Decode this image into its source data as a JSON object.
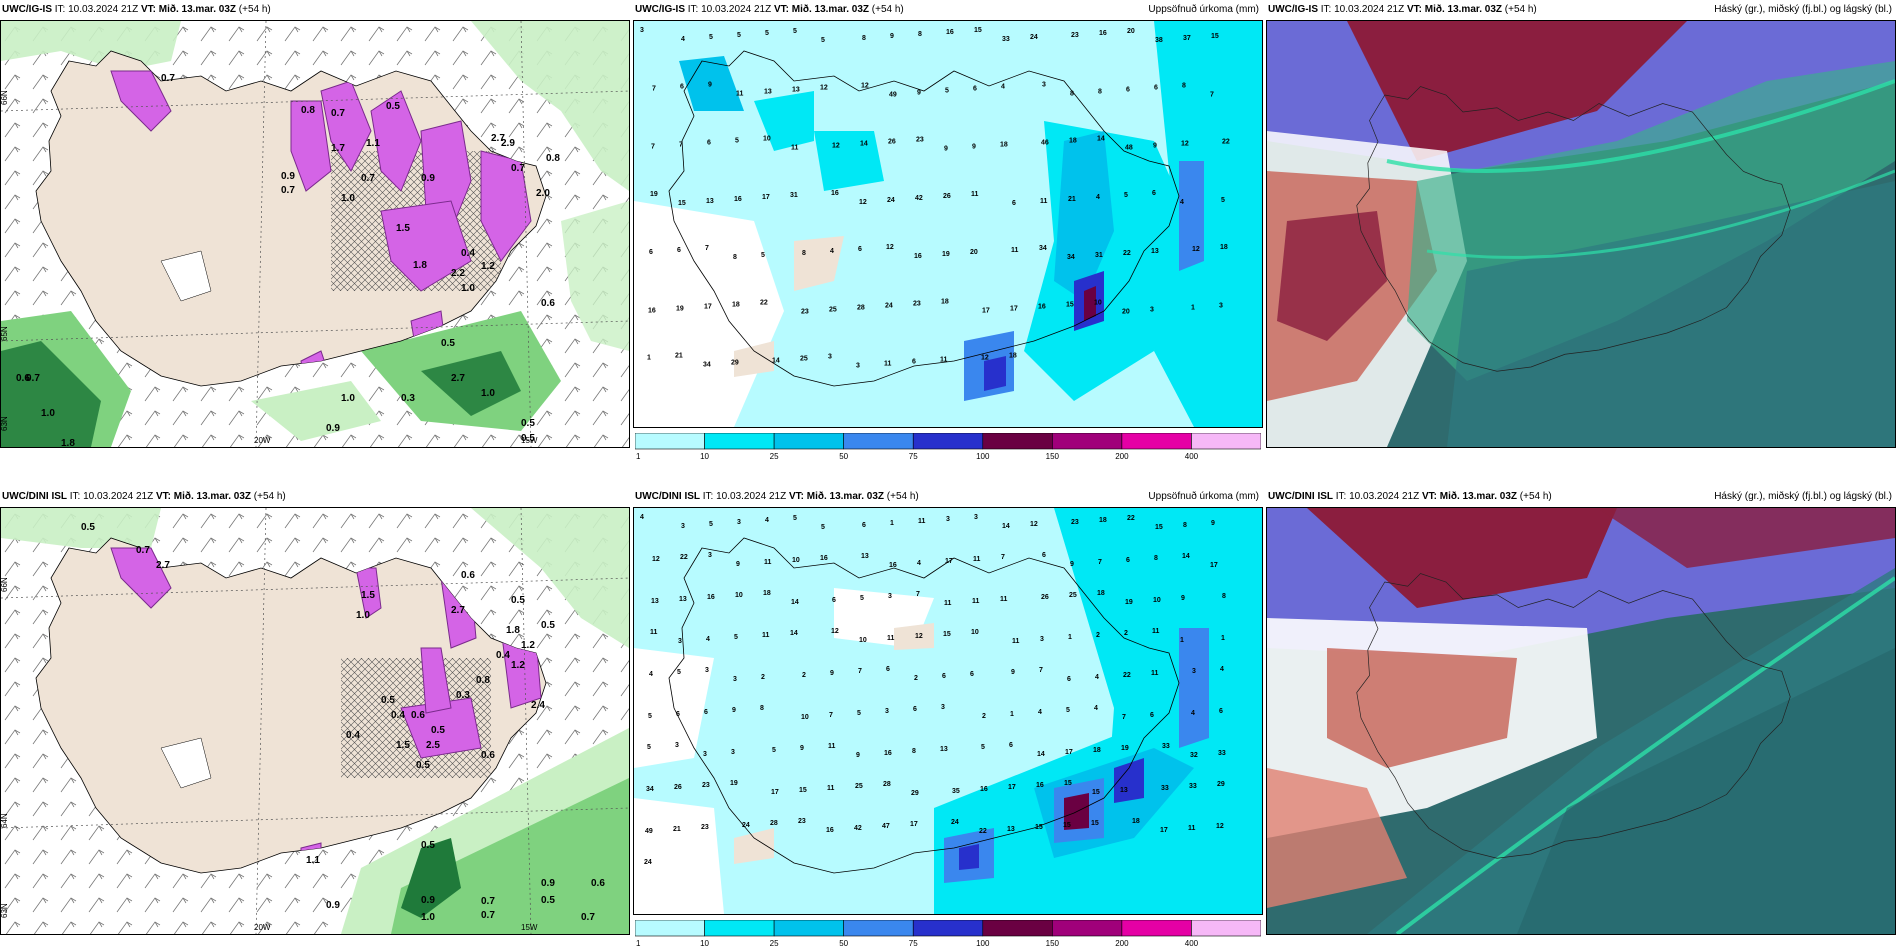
{
  "panels": [
    {
      "model": "UWC/IG-IS",
      "it_label": "IT:",
      "it_value": "10.03.2024 21Z",
      "vt_label": "VT:",
      "vt_value": "Mið. 13.mar. 03Z",
      "lead": "(+54 h)",
      "right_title": ""
    },
    {
      "model": "UWC/IG-IS",
      "it_label": "IT:",
      "it_value": "10.03.2024 21Z",
      "vt_label": "VT:",
      "vt_value": "Mið. 13.mar. 03Z",
      "lead": "(+54 h)",
      "right_title": "Uppsöfnuð úrkoma (mm)"
    },
    {
      "model": "UWC/IG-IS",
      "it_label": "IT:",
      "it_value": "10.03.2024 21Z",
      "vt_label": "VT:",
      "vt_value": "Mið. 13.mar. 03Z",
      "lead": "(+54 h)",
      "right_title": "Háský (gr.), miðský (fj.bl.) og lágský (bl.)"
    },
    {
      "model": "UWC/DINI ISL",
      "it_label": "IT:",
      "it_value": "10.03.2024 21Z",
      "vt_label": "VT:",
      "vt_value": "Mið. 13.mar. 03Z",
      "lead": "(+54 h)",
      "right_title": ""
    },
    {
      "model": "UWC/DINI ISL",
      "it_label": "IT:",
      "it_value": "10.03.2024 21Z",
      "vt_label": "VT:",
      "vt_value": "Mið. 13.mar. 03Z",
      "lead": "(+54 h)",
      "right_title": "Uppsöfnuð úrkoma (mm)"
    },
    {
      "model": "UWC/DINI ISL",
      "it_label": "IT:",
      "it_value": "10.03.2024 21Z",
      "vt_label": "VT:",
      "vt_value": "Mið. 13.mar. 03Z",
      "lead": "(+54 h)",
      "right_title": "Háský (gr.), miðský (fj.bl.) og lágský (bl.)"
    }
  ],
  "axis_labels": {
    "lat_66": "66N",
    "lat_65": "65N",
    "lat_64": "64N",
    "lat_63": "63N",
    "lon_20": "20W",
    "lon_15": "15W",
    "lat_66_mid": "66N",
    "lat_65_mid": "65N",
    "lat_64_mid": "64N"
  },
  "snow_values": {
    "igis": [
      "0.8",
      "0.7",
      "0.5",
      "1.7",
      "1.1",
      "2.7",
      "0.9",
      "0.7",
      "1.0",
      "0.9",
      "2.2",
      "1.8",
      "0.4",
      "1.2",
      "2.9",
      "0.7",
      "0.5",
      "0.6",
      "1.0",
      "1.0",
      "0.3",
      "0.5",
      "0.9",
      "0.6",
      "1.8",
      "2.7",
      "0.7",
      "1.0",
      "0.5",
      "0.7",
      "1.0",
      "0.8",
      "2.0",
      "1.5",
      "0.7"
    ],
    "dini": [
      "0.5",
      "0.7",
      "1.5",
      "0.6",
      "2.7",
      "0.5",
      "0.4",
      "1.2",
      "0.8",
      "0.3",
      "0.5",
      "0.6",
      "0.5",
      "2.5",
      "1.5",
      "0.5",
      "0.6",
      "0.9",
      "0.7",
      "1.0",
      "0.5",
      "0.9",
      "0.6",
      "0.7",
      "0.7",
      "0.9",
      "0.5",
      "0.4",
      "1.1",
      "1.8",
      "2.7",
      "0.5",
      "1.2",
      "1.0",
      "2.4",
      "0.4"
    ]
  },
  "precip_values": {
    "igis": [
      "3",
      "4",
      "5",
      "5",
      "5",
      "5",
      "5",
      "8",
      "9",
      "8",
      "16",
      "15",
      "33",
      "24",
      "23",
      "16",
      "20",
      "38",
      "37",
      "15",
      "7",
      "6",
      "9",
      "11",
      "13",
      "13",
      "12",
      "12",
      "49",
      "9",
      "5",
      "6",
      "4",
      "3",
      "8",
      "8",
      "6",
      "6",
      "8",
      "7",
      "7",
      "7",
      "6",
      "5",
      "10",
      "11",
      "12",
      "14",
      "26",
      "23",
      "9",
      "9",
      "18",
      "46",
      "18",
      "14",
      "48",
      "9",
      "12",
      "22",
      "19",
      "15",
      "13",
      "16",
      "17",
      "31",
      "16",
      "12",
      "24",
      "42",
      "26",
      "11",
      "6",
      "11",
      "21",
      "4",
      "5",
      "6",
      "4",
      "5",
      "6",
      "6",
      "7",
      "8",
      "5",
      "8",
      "4",
      "6",
      "12",
      "16",
      "19",
      "20",
      "11",
      "34",
      "34",
      "31",
      "22",
      "13",
      "12",
      "18",
      "16",
      "19",
      "17",
      "18",
      "22",
      "23",
      "25",
      "28",
      "24",
      "23",
      "18",
      "17",
      "17",
      "16",
      "15",
      "10",
      "20",
      "3",
      "1",
      "3",
      "1",
      "21",
      "34",
      "29",
      "14",
      "25",
      "3",
      "3",
      "11",
      "6",
      "11",
      "12",
      "18"
    ],
    "dini": [
      "4",
      "3",
      "5",
      "3",
      "4",
      "5",
      "5",
      "6",
      "1",
      "11",
      "3",
      "3",
      "14",
      "12",
      "23",
      "18",
      "22",
      "15",
      "8",
      "9",
      "12",
      "22",
      "3",
      "9",
      "11",
      "10",
      "16",
      "13",
      "16",
      "4",
      "17",
      "11",
      "7",
      "6",
      "9",
      "7",
      "6",
      "8",
      "14",
      "17",
      "13",
      "13",
      "16",
      "10",
      "18",
      "14",
      "6",
      "5",
      "3",
      "7",
      "11",
      "11",
      "11",
      "26",
      "25",
      "18",
      "19",
      "10",
      "9",
      "8",
      "11",
      "3",
      "4",
      "5",
      "11",
      "14",
      "12",
      "10",
      "11",
      "12",
      "15",
      "10",
      "11",
      "3",
      "1",
      "2",
      "2",
      "11",
      "1",
      "1",
      "4",
      "5",
      "3",
      "3",
      "2",
      "2",
      "9",
      "7",
      "6",
      "2",
      "6",
      "6",
      "9",
      "7",
      "6",
      "4",
      "22",
      "11",
      "3",
      "4",
      "5",
      "6",
      "6",
      "9",
      "8",
      "10",
      "7",
      "5",
      "3",
      "6",
      "3",
      "2",
      "1",
      "4",
      "5",
      "4",
      "7",
      "6",
      "4",
      "6",
      "5",
      "3",
      "3",
      "3",
      "5",
      "9",
      "11",
      "9",
      "16",
      "8",
      "13",
      "5",
      "6",
      "14",
      "17",
      "18",
      "19",
      "33",
      "32",
      "33",
      "34",
      "26",
      "23",
      "19",
      "17",
      "15",
      "11",
      "25",
      "28",
      "29",
      "35",
      "16",
      "17",
      "16",
      "15",
      "15",
      "13",
      "33",
      "33",
      "29",
      "49",
      "21",
      "23",
      "24",
      "28",
      "23",
      "16",
      "42",
      "47",
      "17",
      "24",
      "22",
      "13",
      "15",
      "15",
      "15",
      "18",
      "17",
      "11",
      "12",
      "24"
    ]
  },
  "precip_colorbar": {
    "ticks": [
      "1",
      "10",
      "25",
      "50",
      "75",
      "100",
      "150",
      "200",
      "400"
    ],
    "colors": [
      "#b7fbff",
      "#00e8f5",
      "#00c2ec",
      "#3a87ee",
      "#2730cc",
      "#6a0042",
      "#a0007a",
      "#e500a5",
      "#f6b8f7"
    ]
  },
  "colors": {
    "land": "#efe3d6",
    "sea_white": "#ffffff",
    "snow_fill": "#d464e6",
    "snow_dark": "#7a2a8c",
    "rain_light": "#c9f0c4",
    "rain_mid": "#7fd27f",
    "rain_dark": "#1f7a3a",
    "high_cloud": "#3bb08a",
    "mid_cloud": "#6b6bd6",
    "low_cloud": "#8b1e3f"
  }
}
